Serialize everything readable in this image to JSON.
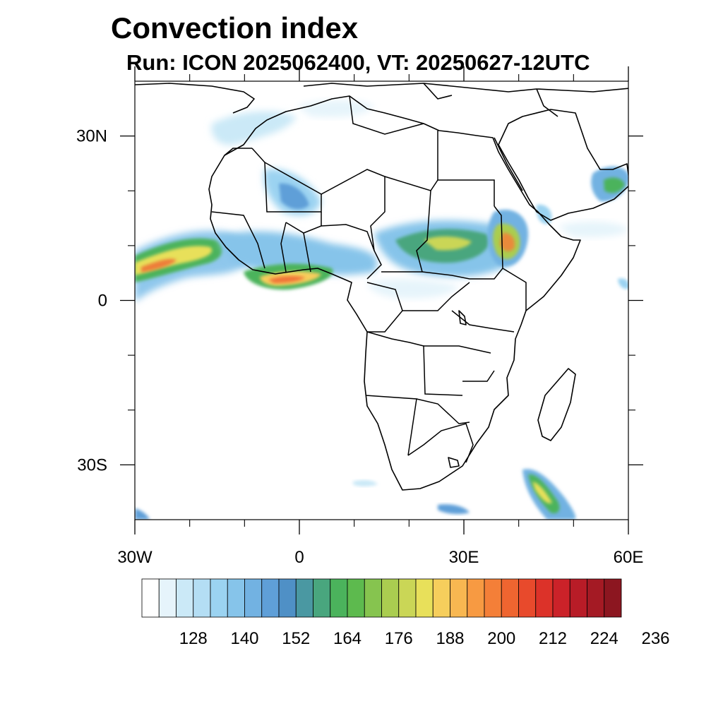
{
  "title": "Convection index",
  "subtitle": "Run: ICON 2025062400,  VT: 20250627-12UTC",
  "map": {
    "lon_range": [
      -30,
      60
    ],
    "lat_range": [
      -40,
      40
    ],
    "lon_ticks": [
      {
        "value": -30,
        "label": "30W"
      },
      {
        "value": 0,
        "label": "0"
      },
      {
        "value": 30,
        "label": "30E"
      },
      {
        "value": 60,
        "label": "60E"
      }
    ],
    "lat_ticks": [
      {
        "value": 30,
        "label": "30N"
      },
      {
        "value": 0,
        "label": "0"
      },
      {
        "value": -30,
        "label": "30S"
      }
    ],
    "minor_lon_ticks": [
      -20,
      -10,
      10,
      20,
      40,
      50
    ],
    "minor_lat_ticks": [
      20,
      10,
      -10,
      -20
    ]
  },
  "colorbar": {
    "colors": [
      "#ffffff",
      "#e6f4fb",
      "#cbe9f7",
      "#b4def4",
      "#9bd3f1",
      "#86c4ea",
      "#72b2e2",
      "#5f9fd8",
      "#4f90c6",
      "#4a98a2",
      "#49a67e",
      "#4bb35c",
      "#5dba4e",
      "#86c44f",
      "#aacd50",
      "#cad656",
      "#e8e05a",
      "#f6ce5c",
      "#f8b751",
      "#f79a42",
      "#f47f38",
      "#ef6530",
      "#e84a2c",
      "#dc3229",
      "#cb2229",
      "#b81c27",
      "#a41a24",
      "#8c1620"
    ],
    "labels": [
      "128",
      "140",
      "152",
      "164",
      "176",
      "188",
      "200",
      "212",
      "224",
      "236"
    ]
  }
}
